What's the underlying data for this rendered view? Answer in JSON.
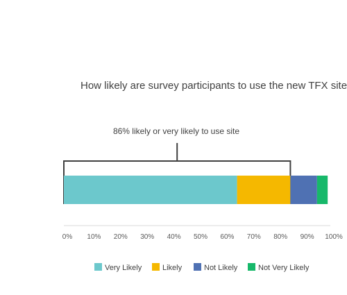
{
  "chart_data": {
    "type": "bar",
    "orientation": "horizontal",
    "stacked": true,
    "percent_scale": true,
    "title": "How likely are survey participants to use the new TFX site",
    "annotation": "86% likely or very likely to use site",
    "xlim": [
      0,
      100
    ],
    "x_ticks": [
      "0%",
      "10%",
      "20%",
      "30%",
      "40%",
      "50%",
      "60%",
      "70%",
      "80%",
      "90%",
      "100%"
    ],
    "grid": false,
    "legend_position": "bottom",
    "series": [
      {
        "name": "Very Likely",
        "values": [
          65
        ],
        "color": "#6cc8cc"
      },
      {
        "name": "Likely",
        "values": [
          20
        ],
        "color": "#f5b800"
      },
      {
        "name": "Not Likely",
        "values": [
          10
        ],
        "color": "#4f71b3"
      },
      {
        "name": "Not Very Likely",
        "values": [
          4
        ],
        "color": "#17b86a"
      }
    ]
  }
}
